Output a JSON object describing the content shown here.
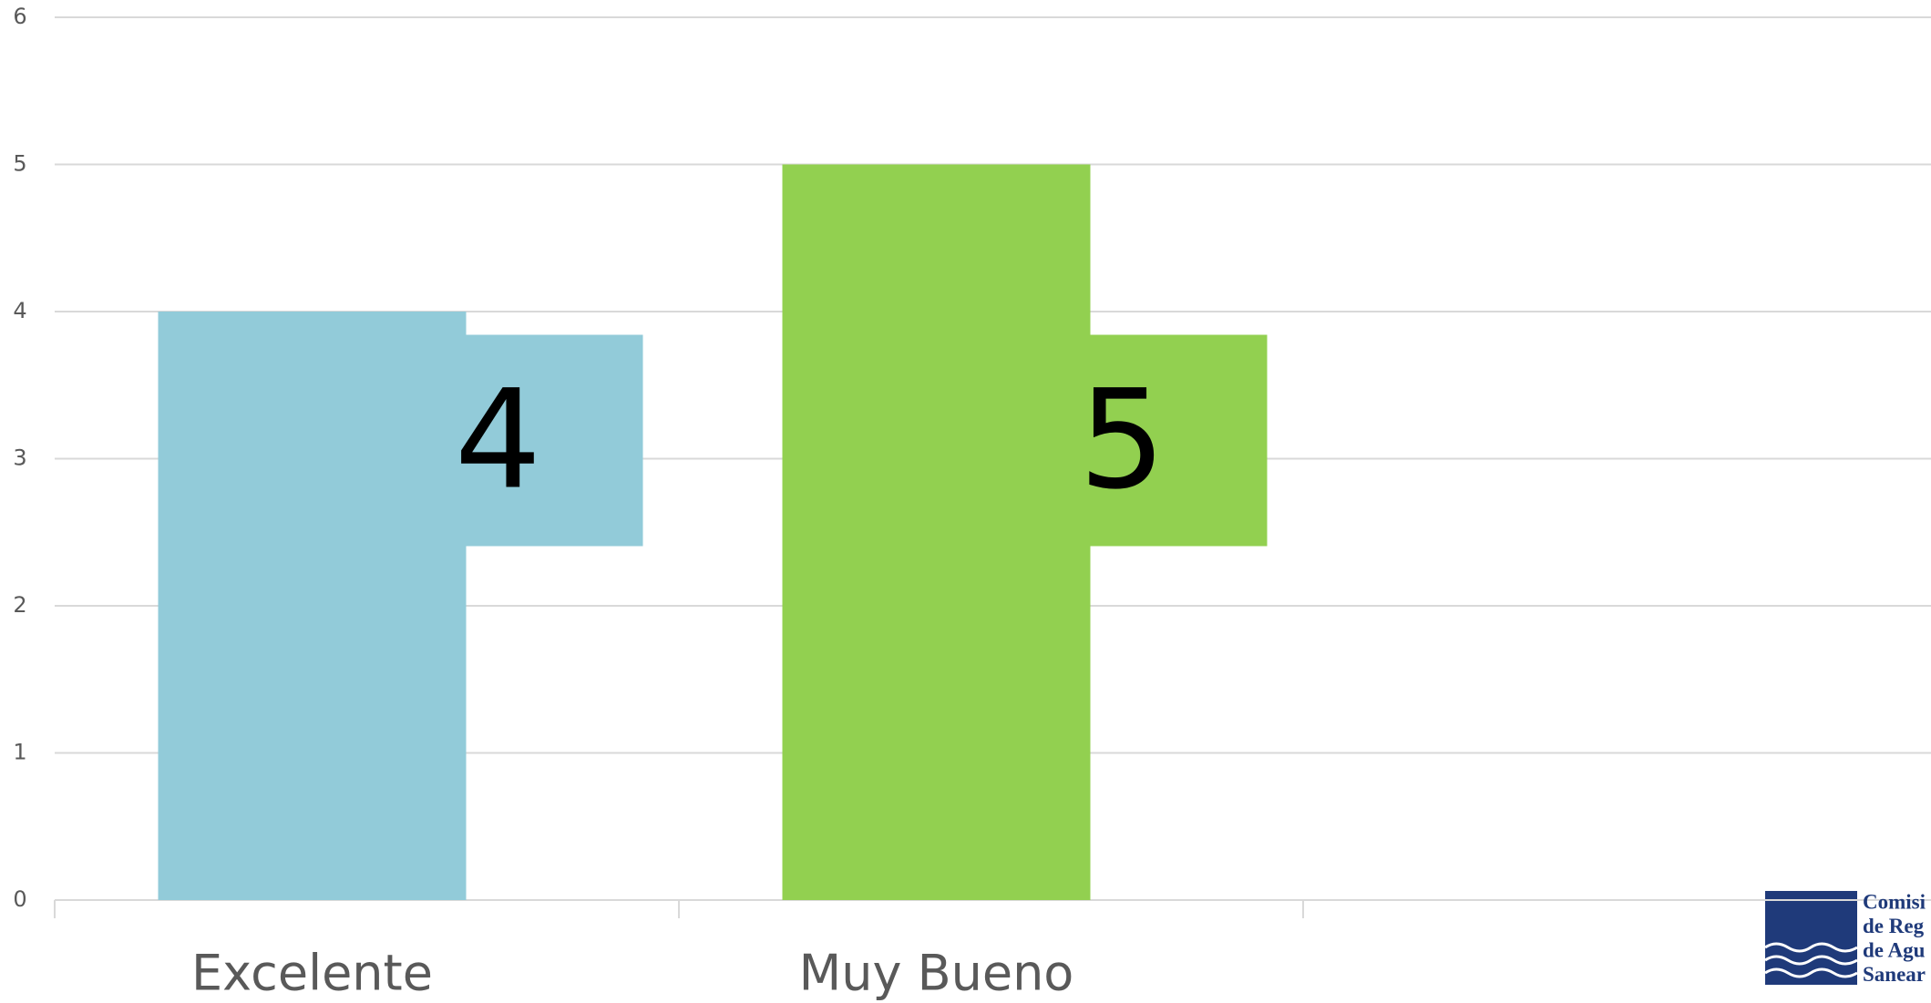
{
  "chart_data": {
    "type": "bar",
    "categories": [
      "Excelente",
      "Muy Bueno",
      null
    ],
    "values": [
      4,
      5,
      null
    ],
    "colors": [
      "#92cbd9",
      "#92d050",
      null
    ],
    "ylim": [
      0,
      6
    ],
    "yticks": [
      0,
      1,
      2,
      3,
      4,
      5,
      6
    ],
    "grid": true
  },
  "logo": {
    "lines": [
      "Comisi",
      "de Reg",
      "de Agu",
      "Sanear"
    ]
  }
}
